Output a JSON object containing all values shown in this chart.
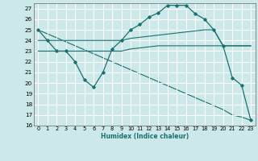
{
  "xlabel": "Humidex (Indice chaleur)",
  "bg_color": "#cce8e8",
  "grid_color": "#ffffff",
  "line_color": "#1a7070",
  "ylim": [
    16,
    27.5
  ],
  "xlim": [
    -0.5,
    23.5
  ],
  "yticks": [
    16,
    17,
    18,
    19,
    20,
    21,
    22,
    23,
    24,
    25,
    26,
    27
  ],
  "xticks": [
    0,
    1,
    2,
    3,
    4,
    5,
    6,
    7,
    8,
    9,
    10,
    11,
    12,
    13,
    14,
    15,
    16,
    17,
    18,
    19,
    20,
    21,
    22,
    23
  ],
  "line1_x": [
    0,
    1,
    2,
    3,
    4,
    5,
    6,
    7,
    8,
    9,
    10,
    11,
    12,
    13,
    14,
    15,
    16,
    17,
    18,
    19,
    20,
    21,
    22,
    23
  ],
  "line1_y": [
    25.0,
    24.0,
    23.0,
    23.0,
    22.0,
    20.3,
    19.6,
    21.0,
    23.2,
    24.0,
    25.0,
    25.5,
    26.2,
    26.6,
    27.3,
    27.3,
    27.3,
    26.5,
    26.0,
    25.0,
    23.5,
    20.5,
    19.8,
    16.5
  ],
  "line2_x": [
    0,
    1,
    2,
    3,
    4,
    5,
    6,
    7,
    8,
    9,
    10,
    11,
    12,
    13,
    14,
    15,
    16,
    17,
    18,
    19,
    20,
    21,
    22,
    23
  ],
  "line2_y": [
    24.0,
    24.0,
    24.0,
    24.0,
    24.0,
    24.0,
    24.0,
    24.0,
    24.0,
    24.0,
    24.2,
    24.3,
    24.4,
    24.5,
    24.6,
    24.7,
    24.8,
    24.9,
    25.0,
    25.0,
    23.5,
    23.5,
    23.5,
    23.5
  ],
  "line3_x": [
    0,
    1,
    2,
    3,
    4,
    5,
    6,
    7,
    8,
    9,
    10,
    11,
    12,
    13,
    14,
    15,
    16,
    17,
    18,
    19,
    20,
    21,
    22,
    23
  ],
  "line3_y": [
    23.0,
    23.0,
    23.0,
    23.0,
    23.0,
    23.0,
    23.0,
    23.0,
    23.0,
    23.0,
    23.2,
    23.3,
    23.4,
    23.5,
    23.5,
    23.5,
    23.5,
    23.5,
    23.5,
    23.5,
    23.5,
    23.5,
    23.5,
    23.5
  ],
  "line4_x": [
    0,
    20,
    21,
    22,
    23
  ],
  "line4_y": [
    25.0,
    17.5,
    17.0,
    16.8,
    16.5
  ]
}
